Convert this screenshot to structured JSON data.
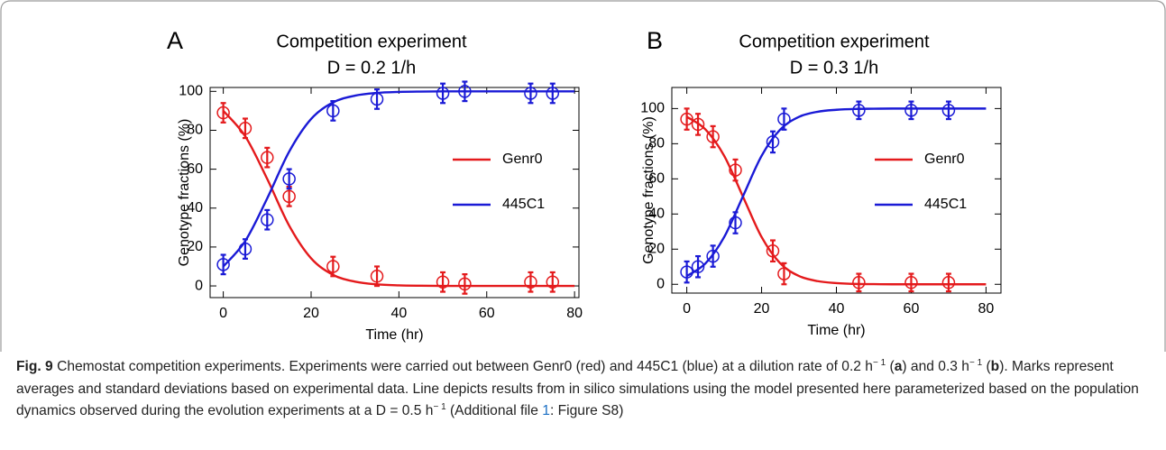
{
  "chart_data": [
    {
      "type": "line",
      "panel_label": "A",
      "title": "Competition experiment",
      "subtitle": "D = 0.2 1/h",
      "xlabel": "Time (hr)",
      "ylabel": "Genotype fractions (%)",
      "xlim": [
        -3,
        81
      ],
      "ylim": [
        -6,
        102
      ],
      "xticks": [
        0,
        20,
        40,
        60,
        80
      ],
      "yticks": [
        0,
        20,
        40,
        60,
        80,
        100
      ],
      "legend": "right",
      "x": [
        0,
        5,
        10,
        15,
        20,
        25,
        30,
        35,
        40,
        45,
        50,
        55,
        60,
        65,
        70,
        75,
        80
      ],
      "series": [
        {
          "name": "Genr0",
          "color": "#e41a1c",
          "values": [
            90.0,
            76.9,
            55.0,
            31.0,
            14.2,
            5.7,
            2.2,
            0.8,
            0.3,
            0.1,
            0,
            0,
            0,
            0,
            0,
            0,
            0
          ],
          "markers": {
            "x": [
              0,
              5,
              10,
              15,
              25,
              35,
              50,
              55,
              70,
              75
            ],
            "values": [
              89,
              81,
              66,
              46,
              10,
              5,
              2,
              1,
              2,
              2
            ],
            "errors": [
              5,
              5,
              5,
              5,
              5,
              5,
              5,
              5,
              5,
              5
            ]
          }
        },
        {
          "name": "445C1",
          "color": "#1a1ad6",
          "values": [
            10.0,
            23.1,
            45.0,
            69.0,
            85.8,
            94.3,
            97.8,
            99.2,
            99.7,
            99.9,
            100,
            100,
            100,
            100,
            100,
            100,
            100
          ],
          "markers": {
            "x": [
              0,
              5,
              10,
              15,
              25,
              35,
              50,
              55,
              70,
              75
            ],
            "values": [
              11,
              19,
              34,
              55,
              90,
              96,
              99,
              100,
              99,
              99
            ],
            "errors": [
              5,
              5,
              5,
              5,
              5,
              5,
              5,
              5,
              5,
              5
            ]
          }
        }
      ]
    },
    {
      "type": "line",
      "panel_label": "B",
      "title": "Competition experiment",
      "subtitle": "D = 0.3 1/h",
      "xlabel": "Time (hr)",
      "ylabel": "Genotype fractions (%)",
      "xlim": [
        -4,
        84
      ],
      "ylim": [
        -5,
        112
      ],
      "xticks": [
        0,
        20,
        40,
        60,
        80
      ],
      "yticks": [
        0,
        20,
        40,
        60,
        80,
        100
      ],
      "legend": "right",
      "x": [
        0,
        5,
        10,
        15,
        20,
        25,
        30,
        35,
        40,
        45,
        50,
        55,
        60,
        65,
        70,
        75,
        80
      ],
      "series": [
        {
          "name": "Genr0",
          "color": "#e41a1c",
          "values": [
            95.3,
            88.1,
            73.1,
            50.0,
            26.9,
            11.9,
            4.7,
            1.8,
            0.7,
            0.2,
            0.1,
            0,
            0,
            0,
            0,
            0,
            0
          ],
          "markers": {
            "x": [
              0,
              3,
              7,
              13,
              23,
              26,
              46,
              60,
              70
            ],
            "values": [
              94,
              91,
              84,
              65,
              19,
              6,
              1,
              1,
              1
            ],
            "errors": [
              6,
              6,
              6,
              6,
              6,
              6,
              5,
              5,
              5
            ]
          }
        },
        {
          "name": "445C1",
          "color": "#1a1ad6",
          "values": [
            4.7,
            11.9,
            26.9,
            50.0,
            73.1,
            88.1,
            95.3,
            98.2,
            99.3,
            99.8,
            99.9,
            100,
            100,
            100,
            100,
            100,
            100
          ],
          "markers": {
            "x": [
              0,
              3,
              7,
              13,
              23,
              26,
              46,
              60,
              70
            ],
            "values": [
              7,
              10,
              16,
              35,
              81,
              94,
              99,
              99,
              99
            ],
            "errors": [
              6,
              6,
              6,
              6,
              6,
              6,
              5,
              5,
              5
            ]
          }
        }
      ]
    }
  ],
  "caption": {
    "parts": [
      "Fig. 9",
      " Chemostat competition experiments. Experiments were carried out between Genr0 (red) and 445C1 (blue) at a dilution rate of 0.2 h",
      "− 1",
      " (",
      "a",
      ") and 0.3 h",
      "− 1",
      " (",
      "b",
      "). Marks represent averages and standard deviations based on experimental data. Line depicts results from in silico simulations using the model presented here parameterized based on the population dynamics observed during the evolution experiments at a D = 0.5 h",
      "− 1",
      " (Additional file ",
      "1",
      ": Figure S8)"
    ]
  }
}
